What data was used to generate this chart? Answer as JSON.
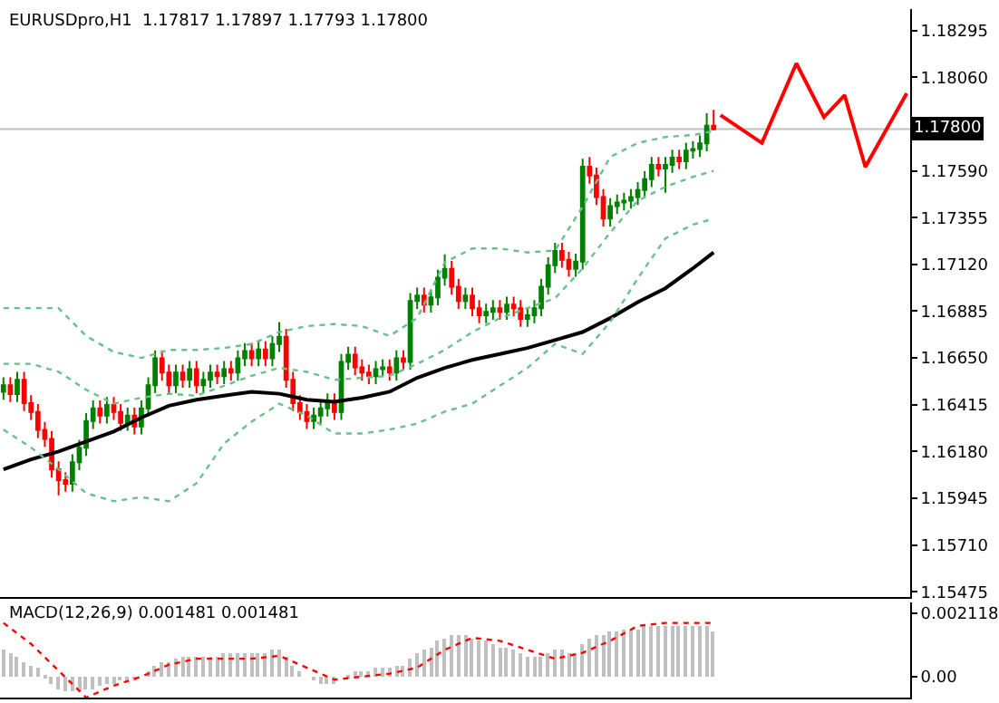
{
  "chart_data": [
    {
      "type": "candlestick",
      "title": "EURUSDpro,H1  1.17817 1.17897 1.17793 1.17800",
      "categories": [
        null,
        null,
        null,
        null,
        null,
        null,
        null,
        null,
        null,
        null,
        null,
        null,
        null,
        null,
        null,
        null,
        null,
        null,
        null,
        null,
        null,
        null,
        null,
        null,
        null,
        null,
        null,
        null,
        null,
        null,
        null,
        null,
        null,
        null,
        null,
        null,
        null,
        null,
        null,
        null,
        null,
        null,
        null,
        null,
        null,
        null,
        null,
        null,
        null,
        null,
        null,
        null,
        null,
        null,
        null,
        null,
        null,
        null,
        null,
        null,
        null,
        null,
        null,
        null,
        null,
        null,
        null,
        null,
        null,
        null,
        null,
        null,
        null,
        null,
        null,
        null,
        null,
        null,
        null,
        null,
        null,
        null,
        null,
        null,
        null,
        null,
        null,
        null,
        null,
        null,
        null,
        null,
        null,
        null,
        null,
        null,
        null,
        null,
        null,
        null,
        null,
        null,
        null,
        null,
        null,
        null,
        null,
        null,
        null,
        null,
        null,
        null,
        null,
        null,
        null,
        null,
        null,
        null,
        null,
        null,
        null,
        null,
        null,
        null,
        null,
        null,
        null,
        null,
        null,
        null,
        null,
        null
      ],
      "colors": [
        "#008000",
        "#ff0000",
        "#008000",
        "#ff0000",
        "#ff0000",
        "#ff0000",
        "#ff0000",
        "#ff0000",
        "#ff0000",
        "#ff0000",
        "#008000",
        "#008000",
        "#008000",
        "#008000",
        "#ff0000",
        "#008000",
        "#ff0000",
        "#ff0000",
        "#008000",
        "#ff0000",
        "#008000",
        "#008000",
        "#008000",
        "#ff0000",
        "#ff0000",
        "#008000",
        "#ff0000",
        "#008000",
        "#ff0000",
        "#008000",
        "#008000",
        "#ff0000",
        "#008000",
        "#ff0000",
        "#008000",
        "#008000",
        "#ff0000",
        "#008000",
        "#ff0000",
        "#008000",
        "#008000",
        "#ff0000",
        "#ff0000",
        "#ff0000",
        "#ff0000",
        "#008000",
        "#008000",
        "#008000",
        "#ff0000",
        "#008000",
        "#008000",
        "#ff0000",
        "#ff0000",
        "#ff0000",
        "#008000",
        "#008000",
        "#ff0000",
        "#008000",
        "#ff0000",
        "#008000",
        "#008000",
        "#ff0000",
        "#008000",
        "#008000",
        "#008000",
        "#ff0000",
        "#ff0000",
        "#008000",
        "#ff0000",
        "#ff0000",
        "#008000",
        "#008000",
        "#ff0000",
        "#008000",
        "#ff0000",
        "#ff0000",
        "#008000",
        "#008000",
        "#008000",
        "#008000",
        "#008000",
        "#ff0000",
        "#ff0000",
        "#008000",
        "#008000",
        "#ff0000",
        "#ff0000",
        "#ff0000",
        "#008000",
        "#008000",
        "#008000",
        "#008000",
        "#008000",
        "#008000",
        "#008000",
        "#ff0000",
        "#008000",
        "#008000",
        "#ff0000",
        "#008000",
        "#008000",
        "#008000",
        "#008000",
        "#ff0000",
        null,
        null,
        null,
        null,
        null,
        null,
        null,
        null,
        null,
        null,
        null,
        null,
        null,
        null,
        null,
        null,
        null,
        null,
        null,
        null,
        null,
        null,
        null,
        null,
        null,
        null,
        null,
        null
      ],
      "ohlc": [
        [
          1.1648,
          1.16553,
          1.1644,
          1.16513
        ],
        [
          1.16513,
          1.16553,
          1.16428,
          1.16468
        ],
        [
          1.16468,
          1.1658,
          1.16428,
          1.1654
        ],
        [
          1.1654,
          1.1658,
          1.16383,
          1.16423
        ],
        [
          1.16423,
          1.16463,
          1.16338,
          1.16378
        ],
        [
          1.16378,
          1.16418,
          1.16248,
          1.16288
        ],
        [
          1.16288,
          1.16328,
          1.16203,
          1.16243
        ],
        [
          1.16243,
          1.16283,
          1.1605,
          1.1609
        ],
        [
          1.1609,
          1.1613,
          1.1596,
          1.16036
        ],
        [
          1.16036,
          1.16076,
          1.15978,
          1.16018
        ],
        [
          1.16018,
          1.16166,
          1.15978,
          1.16126
        ],
        [
          1.16126,
          1.16238,
          1.16086,
          1.16198
        ],
        [
          1.16198,
          1.16373,
          1.16158,
          1.16333
        ],
        [
          1.16333,
          1.16436,
          1.16293,
          1.16396
        ],
        [
          1.16396,
          1.16436,
          1.1632,
          1.1636
        ],
        [
          1.1636,
          1.16454,
          1.1632,
          1.16414
        ],
        [
          1.16414,
          1.16454,
          1.16338,
          1.16378
        ],
        [
          1.16378,
          1.16418,
          1.16284,
          1.16324
        ],
        [
          1.16324,
          1.164,
          1.16284,
          1.1636
        ],
        [
          1.1636,
          1.164,
          1.16266,
          1.16306
        ],
        [
          1.16306,
          1.16436,
          1.16266,
          1.16396
        ],
        [
          1.16396,
          1.16553,
          1.16356,
          1.16513
        ],
        [
          1.16513,
          1.16688,
          1.16473,
          1.16648
        ],
        [
          1.16648,
          1.16688,
          1.16536,
          1.16576
        ],
        [
          1.16576,
          1.16616,
          1.16473,
          1.16513
        ],
        [
          1.16513,
          1.16616,
          1.16473,
          1.16576
        ],
        [
          1.16576,
          1.16616,
          1.165,
          1.1654
        ],
        [
          1.1654,
          1.16634,
          1.165,
          1.16594
        ],
        [
          1.16594,
          1.16634,
          1.16473,
          1.16513
        ],
        [
          1.16513,
          1.1658,
          1.16473,
          1.1654
        ],
        [
          1.1654,
          1.16616,
          1.165,
          1.16576
        ],
        [
          1.16576,
          1.16616,
          1.16518,
          1.16558
        ],
        [
          1.16558,
          1.16634,
          1.16518,
          1.16594
        ],
        [
          1.16594,
          1.16634,
          1.16536,
          1.16576
        ],
        [
          1.16576,
          1.16688,
          1.16536,
          1.16648
        ],
        [
          1.16648,
          1.16724,
          1.16608,
          1.16684
        ],
        [
          1.16684,
          1.16724,
          1.16608,
          1.16648
        ],
        [
          1.16648,
          1.16733,
          1.16608,
          1.16693
        ],
        [
          1.16693,
          1.16733,
          1.16608,
          1.16648
        ],
        [
          1.16648,
          1.1676,
          1.16608,
          1.1672
        ],
        [
          1.1672,
          1.1683,
          1.1668,
          1.16756
        ],
        [
          1.16756,
          1.16796,
          1.165,
          1.1654
        ],
        [
          1.1654,
          1.1658,
          1.16383,
          1.16423
        ],
        [
          1.16423,
          1.16463,
          1.16338,
          1.16378
        ],
        [
          1.16378,
          1.16418,
          1.16293,
          1.16333
        ],
        [
          1.16333,
          1.164,
          1.16293,
          1.1636
        ],
        [
          1.1636,
          1.16436,
          1.1632,
          1.16396
        ],
        [
          1.16396,
          1.16472,
          1.16356,
          1.16432
        ],
        [
          1.16432,
          1.16472,
          1.16338,
          1.16378
        ],
        [
          1.16378,
          1.1667,
          1.16338,
          1.1663
        ],
        [
          1.1663,
          1.16706,
          1.1659,
          1.16666
        ],
        [
          1.16666,
          1.16706,
          1.16563,
          1.16603
        ],
        [
          1.16603,
          1.16643,
          1.16536,
          1.16576
        ],
        [
          1.16576,
          1.16616,
          1.16518,
          1.16558
        ],
        [
          1.16558,
          1.16634,
          1.16518,
          1.16594
        ],
        [
          1.16594,
          1.16643,
          1.16554,
          1.16603
        ],
        [
          1.16603,
          1.16643,
          1.16536,
          1.16576
        ],
        [
          1.16576,
          1.16688,
          1.16536,
          1.16648
        ],
        [
          1.16648,
          1.16688,
          1.1659,
          1.1663
        ],
        [
          1.1663,
          1.16976,
          1.1659,
          1.16936
        ],
        [
          1.16936,
          1.17003,
          1.16896,
          1.16963
        ],
        [
          1.16963,
          1.17003,
          1.16878,
          1.16918
        ],
        [
          1.16918,
          1.16994,
          1.16878,
          1.16954
        ],
        [
          1.16954,
          1.17093,
          1.16914,
          1.17053
        ],
        [
          1.17053,
          1.1717,
          1.17013,
          1.17098
        ],
        [
          1.17098,
          1.17138,
          1.16968,
          1.17008
        ],
        [
          1.17008,
          1.17048,
          1.16896,
          1.16936
        ],
        [
          1.16936,
          1.17003,
          1.16896,
          1.16963
        ],
        [
          1.16963,
          1.17003,
          1.1686,
          1.169
        ],
        [
          1.169,
          1.1694,
          1.16824,
          1.16864
        ],
        [
          1.16864,
          1.16922,
          1.16824,
          1.16882
        ],
        [
          1.16882,
          1.1694,
          1.16842,
          1.169
        ],
        [
          1.169,
          1.1694,
          1.16842,
          1.16882
        ],
        [
          1.16882,
          1.16958,
          1.16842,
          1.16918
        ],
        [
          1.16918,
          1.16958,
          1.1686,
          1.169
        ],
        [
          1.169,
          1.1694,
          1.16806,
          1.16846
        ],
        [
          1.16846,
          1.16904,
          1.16806,
          1.16864
        ],
        [
          1.16864,
          1.1694,
          1.16824,
          1.169
        ],
        [
          1.169,
          1.17048,
          1.1686,
          1.17008
        ],
        [
          1.17008,
          1.17156,
          1.16968,
          1.17116
        ],
        [
          1.17116,
          1.17228,
          1.17076,
          1.17188
        ],
        [
          1.17188,
          1.17228,
          1.17103,
          1.17143
        ],
        [
          1.17143,
          1.17183,
          1.17058,
          1.17098
        ],
        [
          1.17098,
          1.17174,
          1.17058,
          1.17134
        ],
        [
          1.17134,
          1.17651,
          1.17094,
          1.17611
        ],
        [
          1.17611,
          1.1766,
          1.17526,
          1.17566
        ],
        [
          1.17566,
          1.17606,
          1.17418,
          1.17458
        ],
        [
          1.17458,
          1.17498,
          1.1731,
          1.1735
        ],
        [
          1.1735,
          1.17453,
          1.1731,
          1.17413
        ],
        [
          1.17413,
          1.17471,
          1.17373,
          1.17431
        ],
        [
          1.17431,
          1.1748,
          1.17391,
          1.1744
        ],
        [
          1.1744,
          1.17498,
          1.174,
          1.17458
        ],
        [
          1.17458,
          1.17534,
          1.17418,
          1.17494
        ],
        [
          1.17494,
          1.17588,
          1.17454,
          1.17548
        ],
        [
          1.17548,
          1.1766,
          1.17508,
          1.1762
        ],
        [
          1.1762,
          1.1766,
          1.17562,
          1.17602
        ],
        [
          1.17602,
          1.1766,
          1.1748,
          1.1762
        ],
        [
          1.1762,
          1.17696,
          1.1758,
          1.17656
        ],
        [
          1.17656,
          1.17696,
          1.17598,
          1.17638
        ],
        [
          1.17638,
          1.17732,
          1.17598,
          1.17692
        ],
        [
          1.17692,
          1.1774,
          1.17652,
          1.177
        ],
        [
          1.177,
          1.17768,
          1.1766,
          1.17728
        ],
        [
          1.17728,
          1.1788,
          1.17688,
          1.17817
        ],
        [
          1.17817,
          1.17897,
          1.17793,
          1.178
        ],
        null,
        null,
        null,
        null,
        null,
        null,
        null,
        null,
        null,
        null,
        null,
        null,
        null,
        null,
        null,
        null,
        null,
        null,
        null,
        null,
        null,
        null,
        null,
        null,
        null,
        null,
        null,
        null
      ],
      "series": [
        {
          "type": "line",
          "color": "#000000",
          "line_style": "solid",
          "values": [
            1.1609,
            null,
            null,
            null,
            1.1614,
            null,
            null,
            null,
            1.1618,
            null,
            null,
            null,
            1.1623,
            null,
            null,
            null,
            1.1628,
            null,
            null,
            null,
            1.1635,
            null,
            null,
            null,
            1.1641,
            null,
            null,
            null,
            1.1644,
            null,
            null,
            null,
            1.1646,
            null,
            null,
            null,
            1.1648,
            null,
            null,
            null,
            1.1647,
            null,
            null,
            null,
            1.1644,
            null,
            null,
            null,
            1.1643,
            null,
            null,
            null,
            1.1645,
            null,
            null,
            null,
            1.1648,
            null,
            null,
            null,
            1.1655,
            null,
            null,
            null,
            1.166,
            null,
            null,
            null,
            1.1664,
            null,
            null,
            null,
            1.1667,
            null,
            null,
            null,
            1.167,
            null,
            null,
            null,
            1.1674,
            null,
            null,
            null,
            1.1678,
            null,
            null,
            null,
            1.1685,
            null,
            null,
            null,
            1.1693,
            null,
            null,
            null,
            1.17,
            null,
            null,
            null,
            1.171,
            null,
            null,
            1.1718,
            null,
            null,
            null,
            null,
            null,
            null,
            null,
            null,
            null,
            null,
            null,
            null,
            null,
            null,
            null,
            null,
            null,
            null,
            null,
            null,
            null,
            null,
            null,
            null,
            null,
            null,
            null,
            null
          ]
        },
        {
          "type": "line",
          "color": "#66c28a",
          "line_style": "dotted",
          "values": [
            1.169,
            null,
            null,
            null,
            1.169,
            null,
            null,
            null,
            1.169,
            null,
            null,
            null,
            1.1676,
            null,
            null,
            null,
            1.1668,
            null,
            null,
            null,
            1.1665,
            null,
            null,
            null,
            1.1669,
            null,
            null,
            null,
            1.1669,
            null,
            null,
            null,
            1.167,
            null,
            null,
            null,
            1.1672,
            null,
            null,
            null,
            1.1678,
            null,
            null,
            null,
            1.1681,
            null,
            null,
            null,
            1.1682,
            null,
            null,
            null,
            1.1681,
            null,
            null,
            null,
            1.1676,
            null,
            null,
            null,
            1.1685,
            null,
            null,
            null,
            1.1713,
            null,
            null,
            null,
            1.172,
            null,
            null,
            null,
            1.172,
            null,
            null,
            null,
            1.1718,
            null,
            null,
            null,
            1.1719,
            null,
            null,
            null,
            1.1741,
            null,
            null,
            null,
            1.1766,
            null,
            null,
            null,
            1.1773,
            null,
            null,
            null,
            1.1776,
            null,
            null,
            null,
            1.1777,
            null,
            null,
            1.1779,
            null,
            null,
            null,
            null,
            null,
            null,
            null,
            null,
            null,
            null,
            null,
            null,
            null,
            null,
            null,
            null,
            null,
            null,
            null,
            null,
            null,
            null,
            null,
            null,
            null,
            null,
            null,
            null
          ]
        },
        {
          "type": "line",
          "color": "#66c28a",
          "line_style": "dotted",
          "values": [
            1.1662,
            null,
            null,
            null,
            1.1662,
            null,
            null,
            null,
            1.1658,
            null,
            null,
            null,
            1.1649,
            null,
            null,
            null,
            1.1642,
            null,
            null,
            null,
            1.1645,
            null,
            null,
            null,
            1.1647,
            null,
            null,
            null,
            1.1646,
            null,
            null,
            null,
            1.1651,
            null,
            null,
            null,
            1.1656,
            null,
            null,
            null,
            1.166,
            null,
            null,
            null,
            1.1658,
            null,
            null,
            null,
            1.1654,
            null,
            null,
            null,
            1.1655,
            null,
            null,
            null,
            1.1656,
            null,
            null,
            null,
            1.1662,
            null,
            null,
            null,
            1.1669,
            null,
            null,
            null,
            1.1678,
            null,
            null,
            null,
            1.1685,
            null,
            null,
            null,
            1.169,
            null,
            null,
            null,
            1.1695,
            null,
            null,
            null,
            1.171,
            null,
            null,
            null,
            1.1728,
            null,
            null,
            null,
            1.1744,
            null,
            null,
            null,
            1.1751,
            null,
            null,
            null,
            1.1756,
            null,
            null,
            1.1759,
            null,
            null,
            null,
            null,
            null,
            null,
            null,
            null,
            null,
            null,
            null,
            null,
            null,
            null,
            null,
            null,
            null,
            null,
            null,
            null,
            null,
            null,
            null,
            null,
            null,
            null,
            null,
            null
          ]
        },
        {
          "type": "line",
          "color": "#66c28a",
          "line_style": "dotted",
          "values": [
            1.1629,
            null,
            null,
            null,
            1.162,
            null,
            null,
            null,
            1.1609,
            null,
            null,
            null,
            1.1597,
            null,
            null,
            null,
            1.1593,
            null,
            null,
            null,
            1.1595,
            null,
            null,
            null,
            1.1593,
            null,
            null,
            null,
            1.1602,
            null,
            null,
            null,
            1.1622,
            null,
            null,
            null,
            1.1633,
            null,
            null,
            null,
            1.1642,
            null,
            null,
            null,
            1.1636,
            null,
            null,
            null,
            1.1627,
            null,
            null,
            null,
            1.1627,
            null,
            null,
            null,
            1.1629,
            null,
            null,
            null,
            1.1632,
            null,
            null,
            null,
            1.1638,
            null,
            null,
            null,
            1.1642,
            null,
            null,
            null,
            1.1651,
            null,
            null,
            null,
            1.166,
            null,
            null,
            null,
            1.1672,
            null,
            null,
            null,
            1.1667,
            null,
            null,
            null,
            1.1683,
            null,
            null,
            null,
            1.1705,
            null,
            null,
            null,
            1.1725,
            null,
            null,
            null,
            1.1732,
            null,
            null,
            1.1735,
            null,
            null,
            null,
            null,
            null,
            null,
            null,
            null,
            null,
            null,
            null,
            null,
            null,
            null,
            null,
            null,
            null,
            null,
            null,
            null,
            null,
            null,
            null,
            null,
            null,
            null,
            null,
            null
          ]
        },
        {
          "type": "line",
          "color": "#ff0000",
          "line_style": "solid",
          "values": [
            null,
            null,
            null,
            null,
            null,
            null,
            null,
            null,
            null,
            null,
            null,
            null,
            null,
            null,
            null,
            null,
            null,
            null,
            null,
            null,
            null,
            null,
            null,
            null,
            null,
            null,
            null,
            null,
            null,
            null,
            null,
            null,
            null,
            null,
            null,
            null,
            null,
            null,
            null,
            null,
            null,
            null,
            null,
            null,
            null,
            null,
            null,
            null,
            null,
            null,
            null,
            null,
            null,
            null,
            null,
            null,
            null,
            null,
            null,
            null,
            null,
            null,
            null,
            null,
            null,
            null,
            null,
            null,
            null,
            null,
            null,
            null,
            null,
            null,
            null,
            null,
            null,
            null,
            null,
            null,
            null,
            null,
            null,
            null,
            null,
            null,
            null,
            null,
            null,
            null,
            null,
            null,
            null,
            null,
            null,
            null,
            null,
            null,
            null,
            null,
            null,
            null,
            null,
            null,
            1.1787,
            null,
            null,
            null,
            null,
            null,
            1.1773,
            null,
            null,
            null,
            null,
            1.1813,
            null,
            null,
            null,
            1.1786,
            null,
            null,
            1.1797,
            null,
            null,
            1.1761,
            null,
            null,
            null,
            null,
            null,
            1.1798
          ]
        }
      ],
      "ylim": [
        1.15448,
        1.18403
      ],
      "yticks": [
        1.18295,
        {
          "value": 1.1806,
          "label": "1.18060"
        },
        {
          "value": 1.1759,
          "label": "1.17590"
        },
        1.17355,
        {
          "value": 1.1712,
          "label": "1.17120"
        },
        1.16885,
        {
          "value": 1.1665,
          "label": "1.16650"
        },
        1.16415,
        {
          "value": 1.1618,
          "label": "1.16180"
        },
        1.15945,
        {
          "value": 1.1571,
          "label": "1.15710"
        },
        1.15475
      ],
      "ref_lines": [
        {
          "axis": "y",
          "value": 1.178,
          "label": "1.17800",
          "color": "#c0c0c0"
        }
      ],
      "tick_labels": "y",
      "grid": false
    },
    {
      "type": "bar",
      "title": "MACD(12,26,9) 0.001481 0.001481",
      "categories": [
        null,
        null,
        null,
        null,
        null,
        null,
        null,
        null,
        null,
        null,
        null,
        null,
        null,
        null,
        null,
        null,
        null,
        null,
        null,
        null,
        null,
        null,
        null,
        null,
        null,
        null,
        null,
        null,
        null,
        null,
        null,
        null,
        null,
        null,
        null,
        null,
        null,
        null,
        null,
        null,
        null,
        null,
        null,
        null,
        null,
        null,
        null,
        null,
        null,
        null,
        null,
        null,
        null,
        null,
        null,
        null,
        null,
        null,
        null,
        null,
        null,
        null,
        null,
        null,
        null,
        null,
        null,
        null,
        null,
        null,
        null,
        null,
        null,
        null,
        null,
        null,
        null,
        null,
        null,
        null,
        null,
        null,
        null,
        null,
        null,
        null,
        null,
        null,
        null,
        null,
        null,
        null,
        null,
        null,
        null,
        null,
        null,
        null,
        null,
        null,
        null,
        null,
        null,
        null,
        null,
        null,
        null,
        null,
        null,
        null,
        null,
        null,
        null,
        null,
        null,
        null,
        null,
        null,
        null,
        null,
        null,
        null,
        null,
        null,
        null,
        null,
        null,
        null,
        null,
        null,
        null,
        null
      ],
      "series": [
        {
          "type": "bar",
          "color": "#c0c0c0",
          "values": [
            0.0009,
            0.0008,
            0.0007,
            0.0005,
            0.0004,
            0.0003,
            0.0001,
            -0.0002,
            -0.0004,
            -0.0005,
            -0.0005,
            -0.0005,
            -0.0004,
            -0.0004,
            -0.0003,
            -0.0002,
            -0.0002,
            -0.0001,
            -0.0001,
            -0.0001,
            0.0,
            0.0002,
            0.0004,
            0.0005,
            0.0005,
            0.0006,
            0.0007,
            0.0007,
            0.0007,
            0.0007,
            0.0007,
            0.0007,
            0.0008,
            0.0008,
            0.0008,
            0.0008,
            0.0008,
            0.0008,
            0.0008,
            0.0009,
            0.0009,
            0.0007,
            0.0004,
            0.0002,
            0.0,
            -0.0001,
            -0.0002,
            -0.0002,
            -0.0002,
            0.0,
            0.0001,
            0.0002,
            0.0002,
            0.0002,
            0.0003,
            0.0003,
            0.0003,
            0.0004,
            0.0004,
            0.0006,
            0.0008,
            0.0009,
            0.001,
            0.0012,
            0.0013,
            0.0014,
            0.0014,
            0.0014,
            0.0013,
            0.0012,
            0.0012,
            0.0011,
            0.001,
            0.001,
            0.0009,
            0.0008,
            0.0007,
            0.0007,
            0.0007,
            0.0008,
            0.0009,
            0.0009,
            0.0008,
            0.0008,
            0.0011,
            0.0013,
            0.0014,
            0.0014,
            0.0015,
            0.0015,
            0.0016,
            0.0016,
            0.0016,
            0.0017,
            0.0017,
            0.0017,
            0.0017,
            0.0017,
            0.0017,
            0.0017,
            0.0017,
            0.0017,
            0.0017,
            0.0015,
            null,
            null,
            null,
            null,
            null,
            null,
            null,
            null,
            null,
            null,
            null,
            null,
            null,
            null,
            null,
            null,
            null,
            null,
            null,
            null,
            null,
            null,
            null,
            null,
            null,
            null,
            null,
            null
          ]
        },
        {
          "type": "line",
          "color": "#ff0000",
          "line_style": "dotted",
          "values": [
            0.0018,
            null,
            null,
            null,
            0.0011,
            null,
            null,
            null,
            0.0002,
            null,
            null,
            null,
            -0.0007,
            null,
            null,
            null,
            -0.0003,
            null,
            null,
            null,
            0.0,
            null,
            null,
            null,
            0.0004,
            null,
            null,
            null,
            0.0006,
            null,
            null,
            null,
            0.0006,
            null,
            null,
            null,
            0.0006,
            null,
            null,
            null,
            0.0007,
            null,
            null,
            null,
            0.0003,
            null,
            null,
            null,
            -0.0001,
            null,
            null,
            null,
            0.0,
            null,
            null,
            null,
            0.0001,
            null,
            null,
            null,
            0.0003,
            null,
            null,
            null,
            0.0009,
            null,
            null,
            null,
            0.0013,
            null,
            null,
            null,
            0.0012,
            null,
            null,
            null,
            0.0009,
            null,
            null,
            null,
            0.0006,
            null,
            null,
            null,
            0.0008,
            null,
            null,
            null,
            0.0012,
            null,
            null,
            null,
            0.0017,
            null,
            null,
            null,
            0.0018,
            null,
            null,
            null,
            0.0018,
            null,
            null,
            0.0018,
            null,
            null,
            null,
            null,
            null,
            null,
            null,
            null,
            null,
            null,
            null,
            null,
            null,
            null,
            null,
            null,
            null,
            null,
            null,
            null,
            null,
            null,
            null,
            null,
            null,
            null,
            null,
            null
          ]
        }
      ],
      "ylim": [
        -0.0007,
        0.0025
      ],
      "yticks": [
        0.002118,
        {
          "value": 0,
          "label": "0.00"
        }
      ],
      "tick_labels": "y",
      "grid": false
    }
  ]
}
